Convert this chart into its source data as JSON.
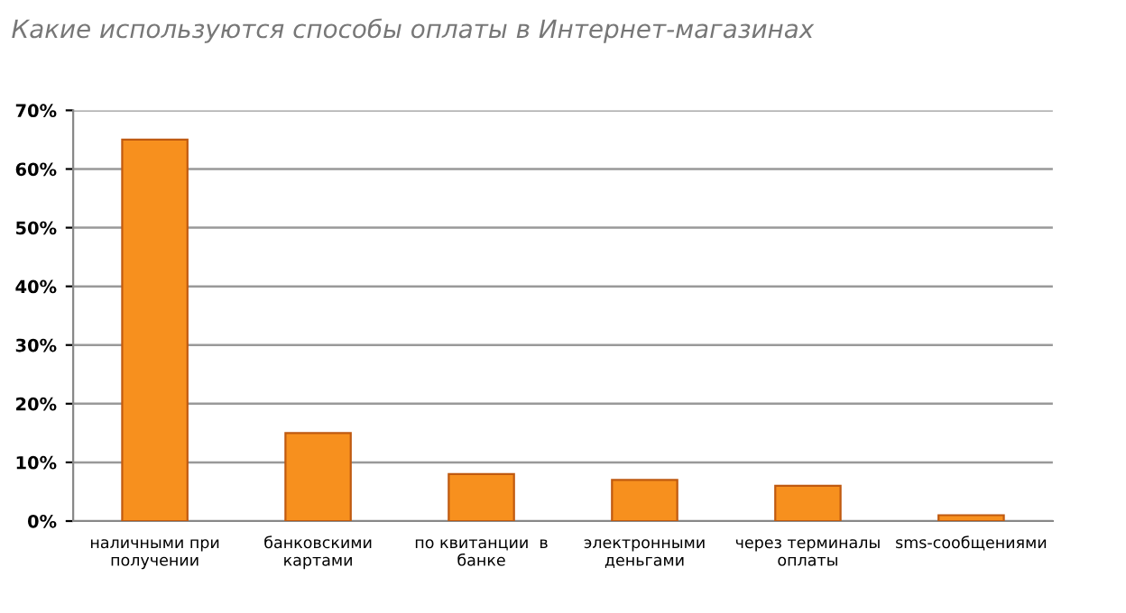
{
  "chart_data": {
    "type": "bar",
    "title": "Какие используются способы оплаты в Интернет-магазинах",
    "categories": [
      "наличными при\nполучении",
      "банковскими\nкартами",
      "по квитанции  в\nбанке",
      "электронными\nденьгами",
      "через терминалы\nоплаты",
      "sms-сообщениями"
    ],
    "values": [
      65,
      15,
      8,
      7,
      6,
      1
    ],
    "color": "#f7901e",
    "ylim": [
      0,
      70
    ],
    "yticks": [
      {
        "value": 0,
        "label": "0%"
      },
      {
        "value": 10,
        "label": "10%"
      },
      {
        "value": 20,
        "label": "20%"
      },
      {
        "value": 30,
        "label": "30%"
      },
      {
        "value": 40,
        "label": "40%"
      },
      {
        "value": 50,
        "label": "50%"
      },
      {
        "value": 60,
        "label": "60%"
      },
      {
        "value": 70,
        "label": "70%"
      }
    ],
    "grid": "y",
    "legend": false
  }
}
